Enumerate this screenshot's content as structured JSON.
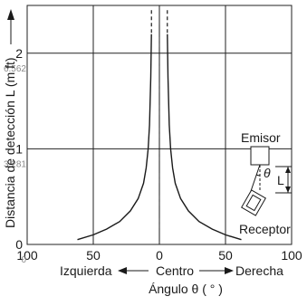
{
  "chart_data": {
    "type": "line",
    "xlim": [
      -100,
      100
    ],
    "ylim": [
      0,
      2.5
    ],
    "x_ticks": [
      {
        "value": -100,
        "label": "100"
      },
      {
        "value": -50,
        "label": "50"
      },
      {
        "value": 0,
        "label": "0"
      },
      {
        "value": 50,
        "label": "50"
      },
      {
        "value": 100,
        "label": "100"
      }
    ],
    "y_ticks": [
      {
        "value": 0,
        "label": "0",
        "secondary": "0"
      },
      {
        "value": 1,
        "label": "1",
        "secondary": "3.281"
      },
      {
        "value": 2,
        "label": "2",
        "secondary": "6.562"
      }
    ],
    "ylabel": "Distancia de detección L (m ft)",
    "xlabel_left": "Izquierda",
    "xlabel_center": "Centro",
    "xlabel_right": "Derecha",
    "xlabel": "Ángulo θ ( ° )",
    "series": [
      {
        "x": [
          -62,
          -50,
          -40,
          -30,
          -22,
          -16,
          -12,
          -10,
          -8.5,
          -7.5,
          -7,
          -6.5,
          -6.2,
          -6
        ],
        "y": [
          0.05,
          0.1,
          0.16,
          0.24,
          0.35,
          0.48,
          0.64,
          0.8,
          1.0,
          1.25,
          1.5,
          1.75,
          2.0,
          2.2
        ]
      },
      {
        "x": [
          6,
          6.2,
          6.5,
          7,
          7.5,
          8.5,
          10,
          12,
          16,
          22,
          30,
          40,
          50,
          62
        ],
        "y": [
          2.2,
          2.0,
          1.75,
          1.5,
          1.25,
          1.0,
          0.8,
          0.64,
          0.48,
          0.35,
          0.24,
          0.16,
          0.1,
          0.05
        ]
      }
    ]
  },
  "inset": {
    "emitter_label": "Emisor",
    "receiver_label": "Receptor",
    "theta_label": "θ",
    "l_label": "L"
  }
}
